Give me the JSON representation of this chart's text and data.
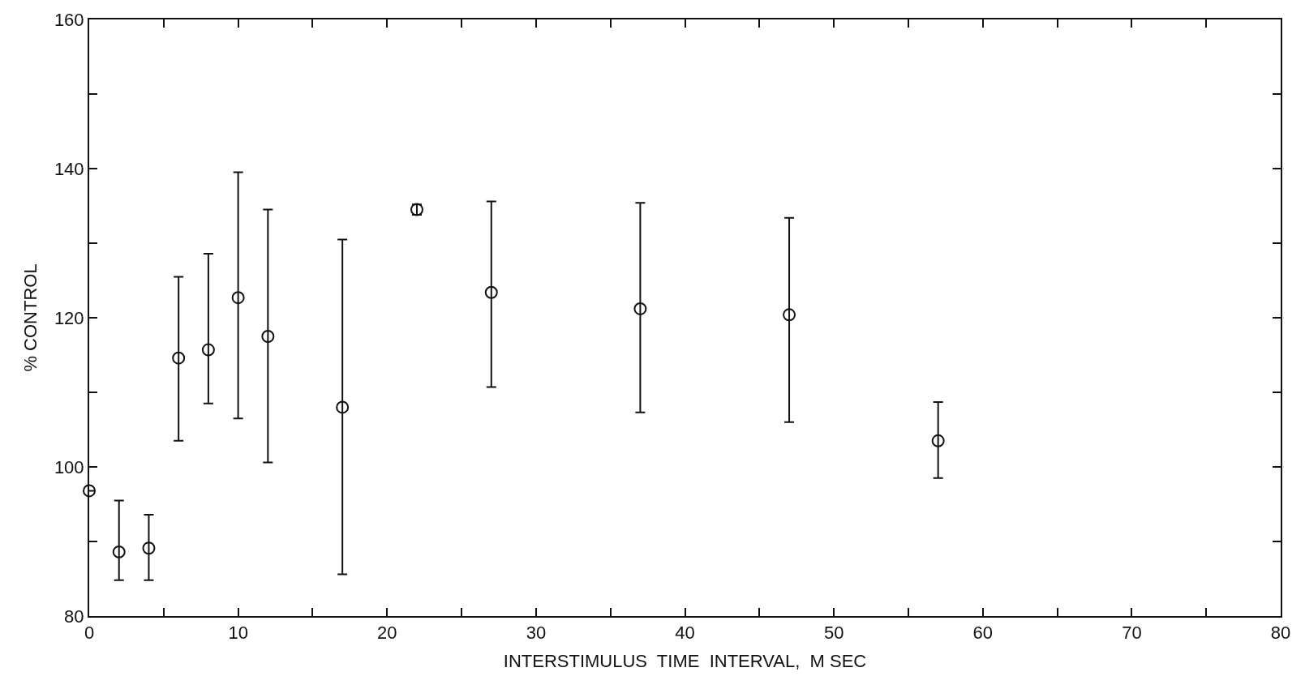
{
  "chart_data": {
    "type": "scatter",
    "xlabel": "INTERSTIMULUS  TIME  INTERVAL,  M SEC",
    "ylabel": "% CONTROL",
    "x": [
      0,
      2,
      4,
      6,
      8,
      10,
      12,
      17,
      22,
      27,
      37,
      47,
      57
    ],
    "series": [
      {
        "color": "#111111",
        "values": [
          96.8,
          88.6,
          89.1,
          114.6,
          115.7,
          122.7,
          117.5,
          108,
          134.5,
          123.4,
          121.2,
          120.4,
          103.5
        ],
        "errors": [
          null,
          [
            84.8,
            95.5
          ],
          [
            84.8,
            93.6
          ],
          [
            103.5,
            125.5
          ],
          [
            108.5,
            128.6
          ],
          [
            106.5,
            139.5
          ],
          [
            100.6,
            134.5
          ],
          [
            85.6,
            130.5
          ],
          [
            133.8,
            135.2
          ],
          [
            110.7,
            135.6
          ],
          [
            107.3,
            135.4
          ],
          [
            106,
            133.4
          ],
          [
            98.5,
            108.7
          ]
        ]
      }
    ],
    "marker": "circle",
    "xlim": [
      0,
      80
    ],
    "ylim": [
      80,
      160
    ],
    "xticks": [
      0,
      {
        "value": 5,
        "label": null
      },
      10,
      {
        "value": 15,
        "label": null
      },
      20,
      {
        "value": 25,
        "label": null
      },
      30,
      {
        "value": 35,
        "label": null
      },
      40,
      {
        "value": 45,
        "label": null
      },
      50,
      {
        "value": 55,
        "label": null
      },
      60,
      {
        "value": 65,
        "label": null
      },
      70,
      {
        "value": 75,
        "label": null
      },
      80
    ],
    "yticks": [
      80,
      {
        "value": 90,
        "label": null
      },
      100,
      {
        "value": 110,
        "label": null
      },
      120,
      {
        "value": 130,
        "label": null
      },
      140,
      {
        "value": 150,
        "label": null
      },
      160
    ]
  }
}
